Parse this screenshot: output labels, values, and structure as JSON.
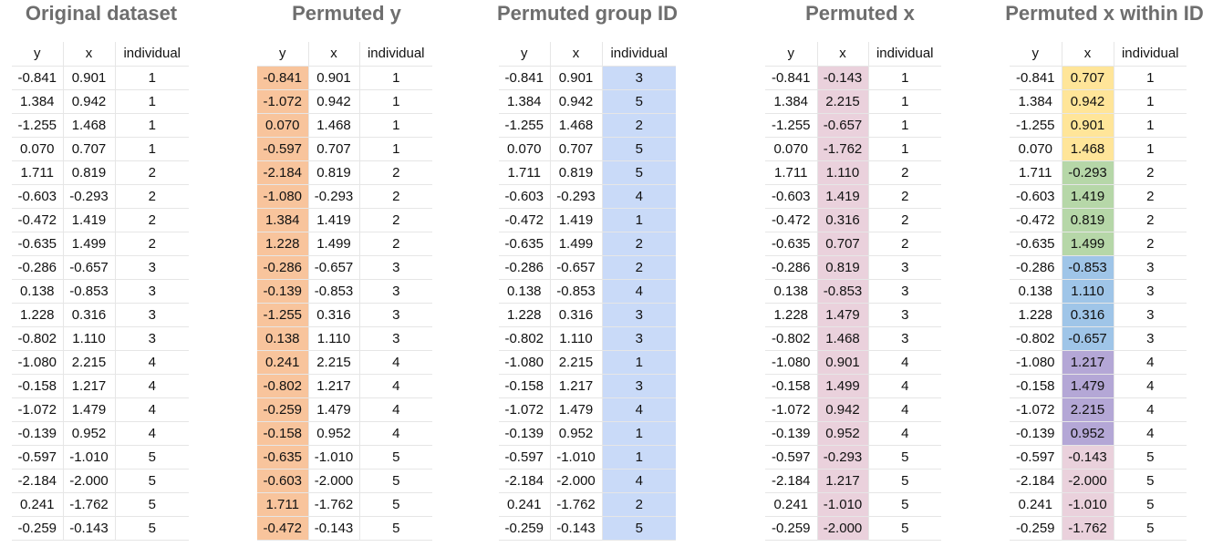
{
  "panels": [
    {
      "title": "Original dataset",
      "headers": [
        "y",
        "x",
        "individual"
      ],
      "highlight_col": -1,
      "rows": [
        [
          "-0.841",
          "0.901",
          "1"
        ],
        [
          "1.384",
          "0.942",
          "1"
        ],
        [
          "-1.255",
          "1.468",
          "1"
        ],
        [
          "0.070",
          "0.707",
          "1"
        ],
        [
          "1.711",
          "0.819",
          "2"
        ],
        [
          "-0.603",
          "-0.293",
          "2"
        ],
        [
          "-0.472",
          "1.419",
          "2"
        ],
        [
          "-0.635",
          "1.499",
          "2"
        ],
        [
          "-0.286",
          "-0.657",
          "3"
        ],
        [
          "0.138",
          "-0.853",
          "3"
        ],
        [
          "1.228",
          "0.316",
          "3"
        ],
        [
          "-0.802",
          "1.110",
          "3"
        ],
        [
          "-1.080",
          "2.215",
          "4"
        ],
        [
          "-0.158",
          "1.217",
          "4"
        ],
        [
          "-1.072",
          "1.479",
          "4"
        ],
        [
          "-0.139",
          "0.952",
          "4"
        ],
        [
          "-0.597",
          "-1.010",
          "5"
        ],
        [
          "-2.184",
          "-2.000",
          "5"
        ],
        [
          "0.241",
          "-1.762",
          "5"
        ],
        [
          "-0.259",
          "-0.143",
          "5"
        ]
      ]
    },
    {
      "title": "Permuted y",
      "headers": [
        "y",
        "x",
        "individual"
      ],
      "highlight_col": 0,
      "highlight_color": "#f8c49c",
      "rows": [
        [
          "-0.841",
          "0.901",
          "1"
        ],
        [
          "-1.072",
          "0.942",
          "1"
        ],
        [
          "0.070",
          "1.468",
          "1"
        ],
        [
          "-0.597",
          "0.707",
          "1"
        ],
        [
          "-2.184",
          "0.819",
          "2"
        ],
        [
          "-1.080",
          "-0.293",
          "2"
        ],
        [
          "1.384",
          "1.419",
          "2"
        ],
        [
          "1.228",
          "1.499",
          "2"
        ],
        [
          "-0.286",
          "-0.657",
          "3"
        ],
        [
          "-0.139",
          "-0.853",
          "3"
        ],
        [
          "-1.255",
          "0.316",
          "3"
        ],
        [
          "0.138",
          "1.110",
          "3"
        ],
        [
          "0.241",
          "2.215",
          "4"
        ],
        [
          "-0.802",
          "1.217",
          "4"
        ],
        [
          "-0.259",
          "1.479",
          "4"
        ],
        [
          "-0.158",
          "0.952",
          "4"
        ],
        [
          "-0.635",
          "-1.010",
          "5"
        ],
        [
          "-0.603",
          "-2.000",
          "5"
        ],
        [
          "1.711",
          "-1.762",
          "5"
        ],
        [
          "-0.472",
          "-0.143",
          "5"
        ]
      ]
    },
    {
      "title": "Permuted group ID",
      "headers": [
        "y",
        "x",
        "individual"
      ],
      "highlight_col": 2,
      "highlight_color": "#c9daf8",
      "rows": [
        [
          "-0.841",
          "0.901",
          "3"
        ],
        [
          "1.384",
          "0.942",
          "5"
        ],
        [
          "-1.255",
          "1.468",
          "2"
        ],
        [
          "0.070",
          "0.707",
          "5"
        ],
        [
          "1.711",
          "0.819",
          "5"
        ],
        [
          "-0.603",
          "-0.293",
          "4"
        ],
        [
          "-0.472",
          "1.419",
          "1"
        ],
        [
          "-0.635",
          "1.499",
          "2"
        ],
        [
          "-0.286",
          "-0.657",
          "2"
        ],
        [
          "0.138",
          "-0.853",
          "4"
        ],
        [
          "1.228",
          "0.316",
          "3"
        ],
        [
          "-0.802",
          "1.110",
          "3"
        ],
        [
          "-1.080",
          "2.215",
          "1"
        ],
        [
          "-0.158",
          "1.217",
          "3"
        ],
        [
          "-1.072",
          "1.479",
          "4"
        ],
        [
          "-0.139",
          "0.952",
          "1"
        ],
        [
          "-0.597",
          "-1.010",
          "1"
        ],
        [
          "-2.184",
          "-2.000",
          "4"
        ],
        [
          "0.241",
          "-1.762",
          "2"
        ],
        [
          "-0.259",
          "-0.143",
          "5"
        ]
      ]
    },
    {
      "title": "Permuted x",
      "headers": [
        "y",
        "x",
        "individual"
      ],
      "highlight_col": 1,
      "highlight_color": "#ead1dc",
      "rows": [
        [
          "-0.841",
          "-0.143",
          "1"
        ],
        [
          "1.384",
          "2.215",
          "1"
        ],
        [
          "-1.255",
          "-0.657",
          "1"
        ],
        [
          "0.070",
          "-1.762",
          "1"
        ],
        [
          "1.711",
          "1.110",
          "2"
        ],
        [
          "-0.603",
          "1.419",
          "2"
        ],
        [
          "-0.472",
          "0.316",
          "2"
        ],
        [
          "-0.635",
          "0.707",
          "2"
        ],
        [
          "-0.286",
          "0.819",
          "3"
        ],
        [
          "0.138",
          "-0.853",
          "3"
        ],
        [
          "1.228",
          "1.479",
          "3"
        ],
        [
          "-0.802",
          "1.468",
          "3"
        ],
        [
          "-1.080",
          "0.901",
          "4"
        ],
        [
          "-0.158",
          "1.499",
          "4"
        ],
        [
          "-1.072",
          "0.942",
          "4"
        ],
        [
          "-0.139",
          "0.952",
          "4"
        ],
        [
          "-0.597",
          "-0.293",
          "5"
        ],
        [
          "-2.184",
          "1.217",
          "5"
        ],
        [
          "0.241",
          "-1.010",
          "5"
        ],
        [
          "-0.259",
          "-2.000",
          "5"
        ]
      ]
    },
    {
      "title": "Permuted x within ID",
      "headers": [
        "y",
        "x",
        "individual"
      ],
      "highlight_col": 1,
      "group_colors": [
        "#ffe599",
        "#b6d7a8",
        "#9fc5e8",
        "#b4a7d6",
        "#ead1dc"
      ],
      "rows": [
        [
          "-0.841",
          "0.707",
          "1"
        ],
        [
          "1.384",
          "0.942",
          "1"
        ],
        [
          "-1.255",
          "0.901",
          "1"
        ],
        [
          "0.070",
          "1.468",
          "1"
        ],
        [
          "1.711",
          "-0.293",
          "2"
        ],
        [
          "-0.603",
          "1.419",
          "2"
        ],
        [
          "-0.472",
          "0.819",
          "2"
        ],
        [
          "-0.635",
          "1.499",
          "2"
        ],
        [
          "-0.286",
          "-0.853",
          "3"
        ],
        [
          "0.138",
          "1.110",
          "3"
        ],
        [
          "1.228",
          "0.316",
          "3"
        ],
        [
          "-0.802",
          "-0.657",
          "3"
        ],
        [
          "-1.080",
          "1.217",
          "4"
        ],
        [
          "-0.158",
          "1.479",
          "4"
        ],
        [
          "-1.072",
          "2.215",
          "4"
        ],
        [
          "-0.139",
          "0.952",
          "4"
        ],
        [
          "-0.597",
          "-0.143",
          "5"
        ],
        [
          "-2.184",
          "-2.000",
          "5"
        ],
        [
          "0.241",
          "-1.010",
          "5"
        ],
        [
          "-0.259",
          "-1.762",
          "5"
        ]
      ]
    }
  ]
}
